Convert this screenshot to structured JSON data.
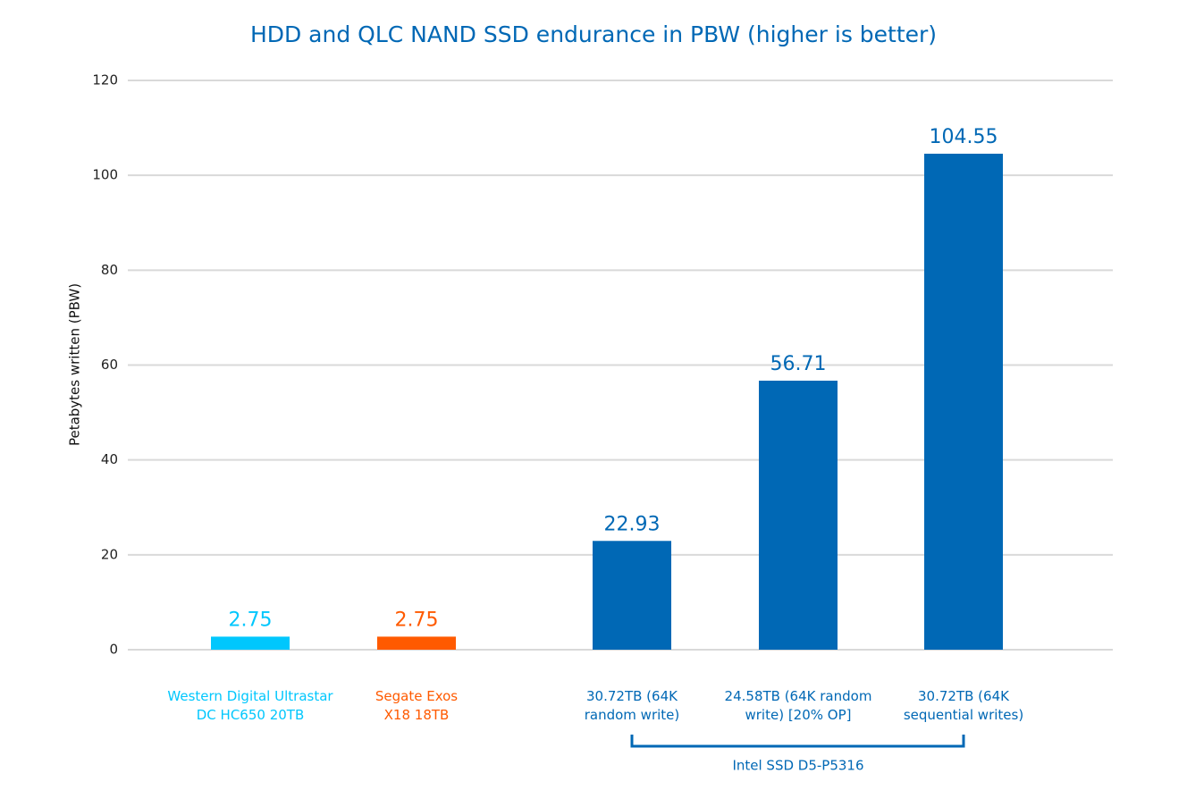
{
  "chart_data": {
    "type": "bar",
    "title": "HDD and QLC NAND SSD endurance in PBW (higher is better)",
    "y_label": "Petabytes written (PBW)",
    "categories": [
      [
        "Western Digital Ultrastar",
        "DC HC650 20TB"
      ],
      [
        "Segate Exos",
        "X18 18TB"
      ],
      [
        "30.72TB (64K",
        "random write)"
      ],
      [
        "24.58TB (64K random",
        "write) [20% OP]"
      ],
      [
        "30.72TB (64K",
        "sequential writes)"
      ]
    ],
    "values": [
      2.75,
      2.75,
      22.93,
      56.71,
      104.55
    ],
    "colors": [
      "#00c7fd",
      "#ff5a00",
      "#0068b5",
      "#0068b5",
      "#0068b5"
    ],
    "group_label": "Intel SSD D5-P5316",
    "ylim": [
      0,
      120
    ],
    "yticks": [
      0,
      20,
      40,
      60,
      80,
      100,
      120
    ],
    "grid": true
  }
}
